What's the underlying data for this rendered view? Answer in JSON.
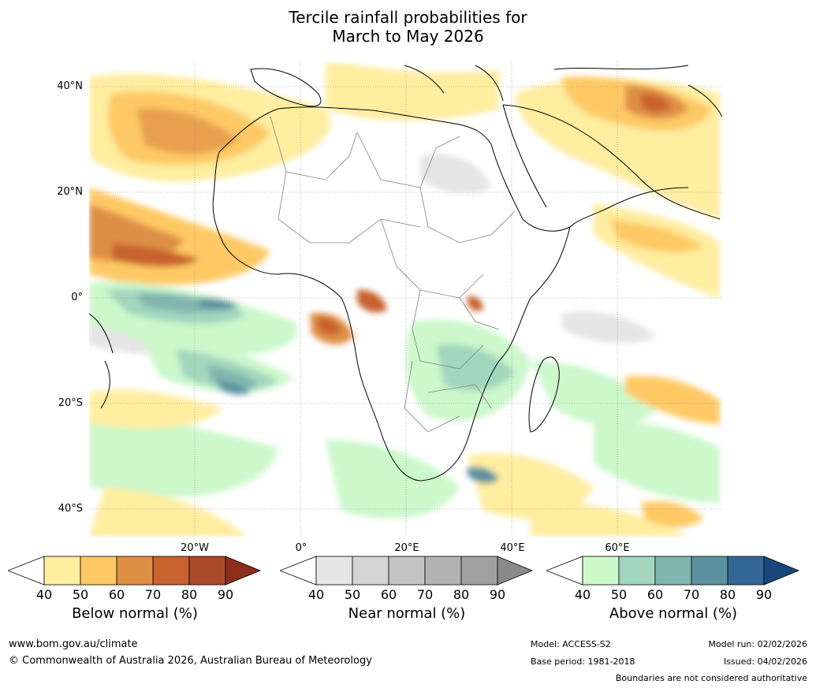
{
  "title": {
    "line1": "Tercile rainfall probabilities for",
    "line2": "March to May 2026"
  },
  "axes": {
    "latitudes": [
      "40°N",
      "20°N",
      "0°",
      "20°S",
      "40°S"
    ],
    "longitudes": [
      "20°W",
      "0°",
      "20°E",
      "40°E",
      "60°E"
    ]
  },
  "legends": [
    {
      "label": "Below normal (%)",
      "ticks": [
        "40",
        "50",
        "60",
        "70",
        "80",
        "90"
      ],
      "colors": [
        "#ffffff",
        "#ffeda0",
        "#fec965",
        "#de8f46",
        "#c8622f",
        "#ab4a28",
        "#8c2e1c"
      ]
    },
    {
      "label": "Near normal (%)",
      "ticks": [
        "40",
        "50",
        "60",
        "70",
        "80",
        "90"
      ],
      "colors": [
        "#ffffff",
        "#e5e5e5",
        "#d4d4d4",
        "#c3c3c3",
        "#b3b3b3",
        "#a1a1a1",
        "#8a8a8a"
      ]
    },
    {
      "label": "Above normal (%)",
      "ticks": [
        "40",
        "50",
        "60",
        "70",
        "80",
        "90"
      ],
      "colors": [
        "#ffffff",
        "#ccf8cc",
        "#a2d6bd",
        "#80b6af",
        "#5c91a0",
        "#346697",
        "#19477b"
      ]
    }
  ],
  "footer": {
    "website": "www.bom.gov.au/climate",
    "copyright": "© Commonwealth of Australia 2026, Australian Bureau of Meteorology",
    "model": "Model: ACCESS-S2",
    "base_period": "Base period: 1981-2018",
    "model_run": "Model run: 02/02/2026",
    "issued": "Issued: 04/02/2026",
    "disclaimer": "Boundaries are not considered authoritative"
  }
}
